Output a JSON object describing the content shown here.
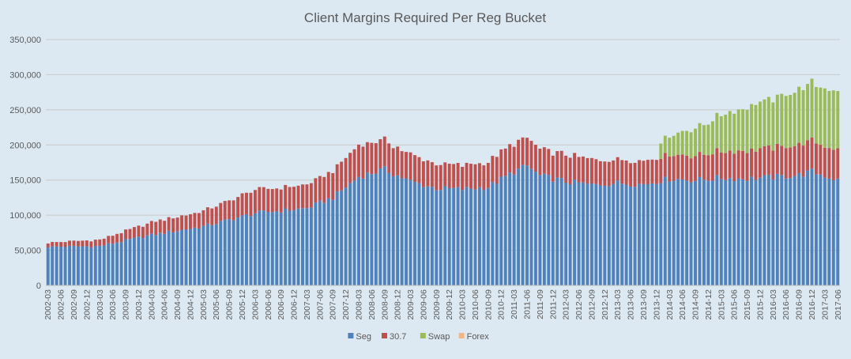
{
  "chart_data": {
    "type": "bar",
    "stacked": true,
    "title": "Client Margins Required Per Reg Bucket",
    "xlabel": "",
    "ylabel": "",
    "ylim": [
      0,
      350000
    ],
    "yticks": [
      "0",
      "50,000",
      "100,000",
      "150,000",
      "200,000",
      "250,000",
      "300,000",
      "350,000"
    ],
    "ytick_values": [
      0,
      50000,
      100000,
      150000,
      200000,
      250000,
      300000,
      350000
    ],
    "grid": true,
    "legend_position": "bottom",
    "x_start": "2002-03",
    "x_end": "2017-06",
    "x_tick_labels": [
      "2002-03",
      "2002-06",
      "2002-09",
      "2002-12",
      "2003-03",
      "2003-06",
      "2003-09",
      "2003-12",
      "2004-03",
      "2004-06",
      "2004-09",
      "2004-12",
      "2005-03",
      "2005-06",
      "2005-09",
      "2005-12",
      "2006-03",
      "2006-06",
      "2006-09",
      "2006-12",
      "2007-03",
      "2007-06",
      "2007-09",
      "2007-12",
      "2008-03",
      "2008-06",
      "2008-09",
      "2008-12",
      "2009-03",
      "2009-06",
      "2009-09",
      "2009-12",
      "2010-03",
      "2010-06",
      "2010-09",
      "2010-12",
      "2011-03",
      "2011-06",
      "2011-09",
      "2011-12",
      "2012-03",
      "2012-06",
      "2012-09",
      "2012-12",
      "2013-03",
      "2013-06",
      "2013-09",
      "2013-12",
      "2014-03",
      "2014-06",
      "2014-09",
      "2014-12",
      "2015-03",
      "2015-06",
      "2015-09",
      "2015-12",
      "2016-03",
      "2016-06",
      "2016-09",
      "2016-12",
      "2017-03",
      "2017-06"
    ],
    "series_anchors": [
      {
        "name": "Seg",
        "color": "#4f81bd",
        "points": [
          [
            "2002-03",
            55000
          ],
          [
            "2003-03",
            56000
          ],
          [
            "2004-03",
            72000
          ],
          [
            "2005-03",
            84000
          ],
          [
            "2006-03",
            103000
          ],
          [
            "2007-03",
            110000
          ],
          [
            "2007-09",
            125000
          ],
          [
            "2008-03",
            155000
          ],
          [
            "2008-09",
            165000
          ],
          [
            "2009-03",
            148000
          ],
          [
            "2009-09",
            138000
          ],
          [
            "2010-03",
            137000
          ],
          [
            "2010-09",
            140000
          ],
          [
            "2011-03",
            162000
          ],
          [
            "2011-06",
            170000
          ],
          [
            "2011-09",
            156000
          ],
          [
            "2012-03",
            148000
          ],
          [
            "2012-09",
            143000
          ],
          [
            "2013-03",
            146000
          ],
          [
            "2013-09",
            144000
          ],
          [
            "2014-03",
            152000
          ],
          [
            "2014-09",
            150000
          ],
          [
            "2015-03",
            153000
          ],
          [
            "2015-09",
            152000
          ],
          [
            "2016-03",
            154000
          ],
          [
            "2016-09",
            157000
          ],
          [
            "2016-12",
            162000
          ],
          [
            "2017-06",
            150000
          ]
        ]
      },
      {
        "name": "30.7",
        "color": "#c0504d",
        "points": [
          [
            "2002-03",
            6000
          ],
          [
            "2003-03",
            9000
          ],
          [
            "2004-03",
            18000
          ],
          [
            "2005-03",
            22000
          ],
          [
            "2006-03",
            33000
          ],
          [
            "2007-03",
            33000
          ],
          [
            "2007-09",
            38000
          ],
          [
            "2008-03",
            45000
          ],
          [
            "2008-09",
            42000
          ],
          [
            "2009-03",
            38000
          ],
          [
            "2009-09",
            35000
          ],
          [
            "2010-03",
            34000
          ],
          [
            "2010-09",
            36000
          ],
          [
            "2011-03",
            40000
          ],
          [
            "2011-06",
            40000
          ],
          [
            "2011-09",
            38000
          ],
          [
            "2012-03",
            38000
          ],
          [
            "2012-09",
            36000
          ],
          [
            "2013-03",
            34000
          ],
          [
            "2013-09",
            34000
          ],
          [
            "2014-03",
            35000
          ],
          [
            "2014-09",
            35000
          ],
          [
            "2015-03",
            38000
          ],
          [
            "2015-09",
            40000
          ],
          [
            "2016-03",
            42000
          ],
          [
            "2016-09",
            43000
          ],
          [
            "2016-12",
            44000
          ],
          [
            "2017-06",
            42000
          ]
        ]
      },
      {
        "name": "Swap",
        "color": "#9bbb59",
        "points": [
          [
            "2002-03",
            0
          ],
          [
            "2013-09",
            0
          ],
          [
            "2013-12",
            0
          ],
          [
            "2014-01",
            22000
          ],
          [
            "2014-06",
            33000
          ],
          [
            "2014-09",
            38000
          ],
          [
            "2015-03",
            52000
          ],
          [
            "2015-09",
            62000
          ],
          [
            "2016-03",
            70000
          ],
          [
            "2016-09",
            78000
          ],
          [
            "2016-12",
            82000
          ],
          [
            "2017-06",
            84000
          ]
        ]
      },
      {
        "name": "Forex",
        "color": "#f7b57d",
        "points": [
          [
            "2002-03",
            0
          ],
          [
            "2017-06",
            0
          ]
        ]
      }
    ],
    "series": [
      {
        "name": "Seg",
        "color": "#4f81bd"
      },
      {
        "name": "30.7",
        "color": "#c0504d"
      },
      {
        "name": "Swap",
        "color": "#9bbb59"
      },
      {
        "name": "Forex",
        "color": "#f7b57d"
      }
    ]
  }
}
